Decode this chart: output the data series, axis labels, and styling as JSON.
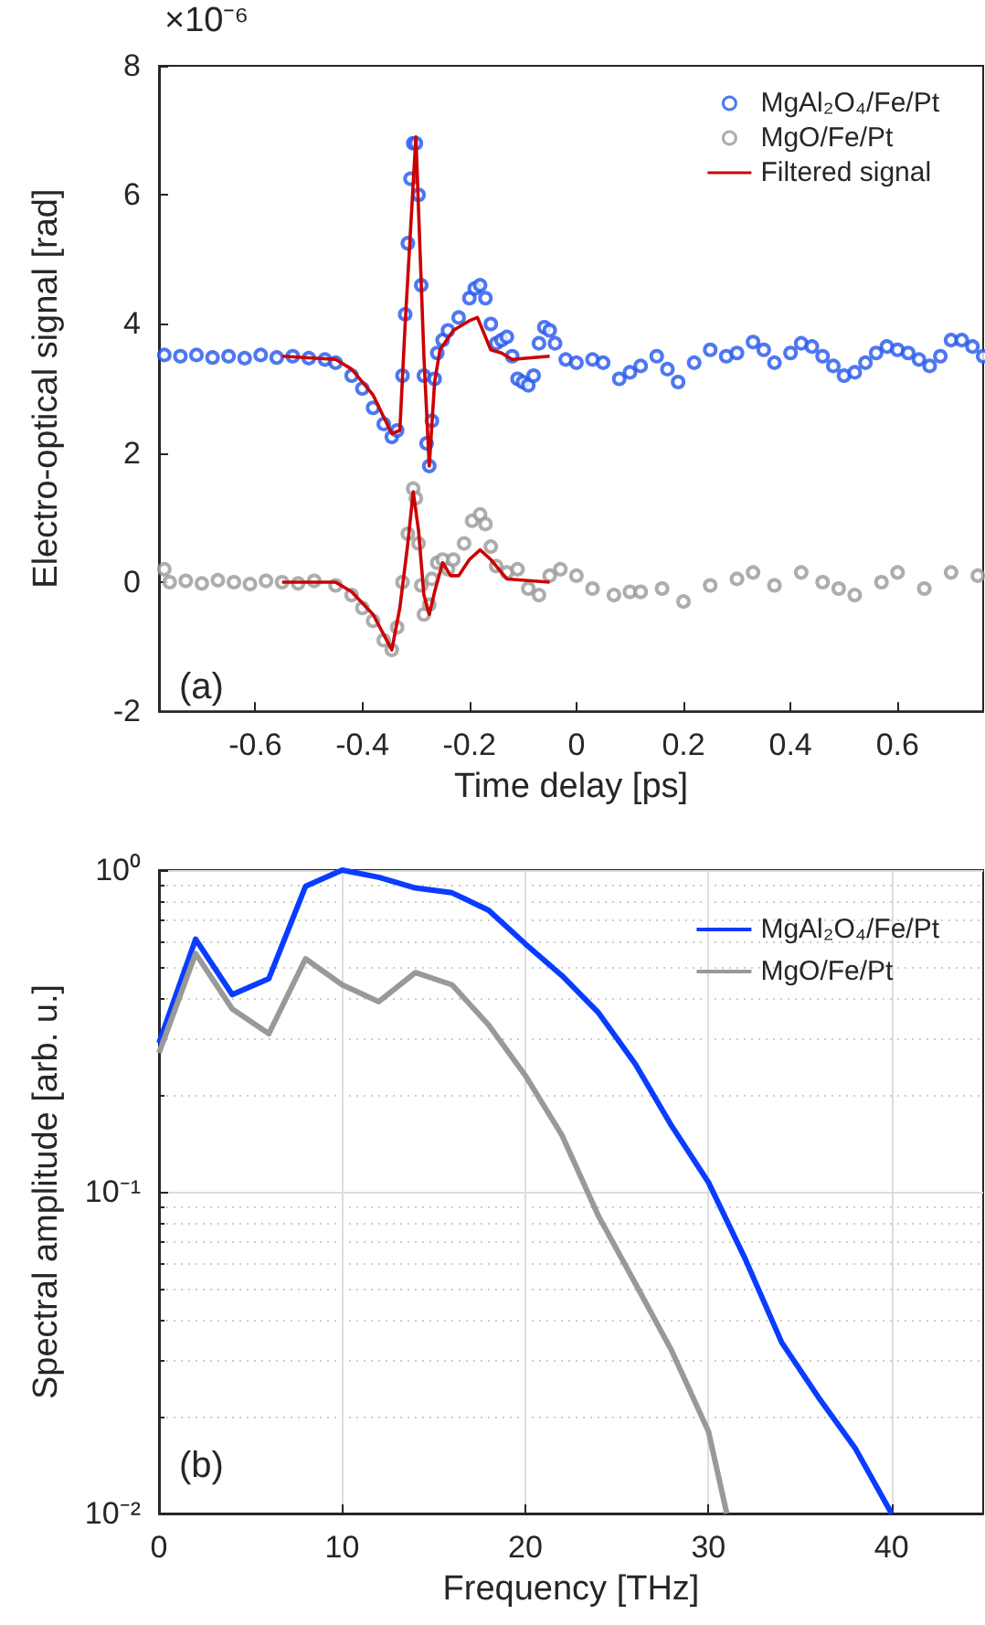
{
  "chart_data": [
    {
      "type": "scatter",
      "xlabel": "Time delay [ps]",
      "ylabel": "Electro-optical signal [rad]",
      "annotations": [
        "×10⁻⁶",
        "(a)"
      ],
      "xlim": [
        -0.78,
        0.76
      ],
      "xticks": [
        -0.6,
        -0.4,
        -0.2,
        0,
        0.2,
        0.4,
        0.6
      ],
      "ylim": [
        -2,
        8
      ],
      "yticks": [
        -2,
        0,
        2,
        4,
        6,
        8
      ],
      "legend": "top right",
      "series": [
        {
          "name": "MgAl₂O₄/Fe/Pt",
          "marker": "circle",
          "color": "#2255ee",
          "x": [
            -0.77,
            -0.74,
            -0.71,
            -0.68,
            -0.65,
            -0.62,
            -0.59,
            -0.56,
            -0.53,
            -0.5,
            -0.47,
            -0.45,
            -0.42,
            -0.4,
            -0.38,
            -0.36,
            -0.345,
            -0.335,
            -0.325,
            -0.32,
            -0.315,
            -0.31,
            -0.305,
            -0.3,
            -0.295,
            -0.29,
            -0.285,
            -0.28,
            -0.275,
            -0.27,
            -0.265,
            -0.26,
            -0.25,
            -0.24,
            -0.22,
            -0.2,
            -0.19,
            -0.18,
            -0.17,
            -0.16,
            -0.15,
            -0.14,
            -0.13,
            -0.12,
            -0.11,
            -0.1,
            -0.09,
            -0.08,
            -0.07,
            -0.06,
            -0.05,
            -0.04,
            -0.02,
            0,
            0.03,
            0.05,
            0.08,
            0.1,
            0.12,
            0.15,
            0.17,
            0.19,
            0.22,
            0.25,
            0.28,
            0.3,
            0.33,
            0.35,
            0.37,
            0.4,
            0.42,
            0.44,
            0.46,
            0.48,
            0.5,
            0.52,
            0.54,
            0.56,
            0.58,
            0.6,
            0.62,
            0.64,
            0.66,
            0.68,
            0.7,
            0.72,
            0.74,
            0.76
          ],
          "values": [
            3.52,
            3.5,
            3.52,
            3.48,
            3.5,
            3.47,
            3.52,
            3.48,
            3.5,
            3.47,
            3.45,
            3.4,
            3.2,
            3.0,
            2.7,
            2.45,
            2.25,
            2.35,
            3.2,
            4.15,
            5.25,
            6.25,
            6.8,
            6.8,
            6.0,
            4.6,
            3.2,
            2.15,
            1.8,
            2.5,
            3.15,
            3.55,
            3.75,
            3.9,
            4.1,
            4.4,
            4.55,
            4.6,
            4.4,
            4.0,
            3.7,
            3.75,
            3.8,
            3.5,
            3.15,
            3.1,
            3.05,
            3.2,
            3.7,
            3.95,
            3.9,
            3.7,
            3.45,
            3.4,
            3.45,
            3.4,
            3.15,
            3.25,
            3.35,
            3.5,
            3.3,
            3.1,
            3.4,
            3.6,
            3.5,
            3.55,
            3.72,
            3.6,
            3.4,
            3.55,
            3.7,
            3.65,
            3.5,
            3.35,
            3.2,
            3.25,
            3.4,
            3.55,
            3.65,
            3.6,
            3.55,
            3.45,
            3.35,
            3.5,
            3.75,
            3.75,
            3.65,
            3.5
          ]
        },
        {
          "name": "MgO/Fe/Pt",
          "marker": "circle",
          "color": "#999999",
          "x": [
            -0.77,
            -0.76,
            -0.73,
            -0.7,
            -0.67,
            -0.64,
            -0.61,
            -0.58,
            -0.55,
            -0.52,
            -0.49,
            -0.45,
            -0.42,
            -0.4,
            -0.38,
            -0.36,
            -0.345,
            -0.335,
            -0.325,
            -0.315,
            -0.305,
            -0.3,
            -0.295,
            -0.29,
            -0.285,
            -0.275,
            -0.27,
            -0.26,
            -0.25,
            -0.24,
            -0.23,
            -0.21,
            -0.195,
            -0.18,
            -0.17,
            -0.16,
            -0.15,
            -0.13,
            -0.11,
            -0.09,
            -0.07,
            -0.05,
            -0.03,
            0,
            0.03,
            0.07,
            0.1,
            0.12,
            0.16,
            0.2,
            0.25,
            0.3,
            0.33,
            0.37,
            0.42,
            0.46,
            0.49,
            0.52,
            0.57,
            0.6,
            0.65,
            0.7,
            0.75
          ],
          "values": [
            0.2,
            0,
            0.02,
            -0.02,
            0.03,
            0,
            -0.03,
            0.02,
            0,
            -0.02,
            0.02,
            -0.05,
            -0.2,
            -0.4,
            -0.6,
            -0.9,
            -1.05,
            -0.7,
            0,
            0.75,
            1.45,
            1.3,
            0.6,
            -0.05,
            -0.5,
            -0.35,
            0.05,
            0.3,
            0.35,
            0.2,
            0.35,
            0.6,
            0.95,
            1.05,
            0.9,
            0.55,
            0.25,
            0.15,
            0.2,
            -0.1,
            -0.2,
            0.1,
            0.2,
            0.1,
            -0.1,
            -0.2,
            -0.15,
            -0.15,
            -0.1,
            -0.3,
            -0.05,
            0.05,
            0.15,
            -0.05,
            0.15,
            0,
            -0.1,
            -0.2,
            0,
            0.15,
            -0.1,
            0.15,
            0.1
          ]
        },
        {
          "name": "Filtered signal",
          "type": "line",
          "color": "#cc0000",
          "x": [
            -0.55,
            -0.45,
            -0.42,
            -0.38,
            -0.345,
            -0.33,
            -0.32,
            -0.3,
            -0.285,
            -0.275,
            -0.265,
            -0.255,
            -0.23,
            -0.2,
            -0.185,
            -0.16,
            -0.14,
            -0.12,
            -0.05
          ],
          "values": [
            3.5,
            3.45,
            3.3,
            2.9,
            2.3,
            2.35,
            4.0,
            6.9,
            3.5,
            1.8,
            3.1,
            3.6,
            3.9,
            4.05,
            4.1,
            3.6,
            3.55,
            3.45,
            3.5
          ]
        },
        {
          "type": "line",
          "color": "#cc0000",
          "x": [
            -0.55,
            -0.45,
            -0.42,
            -0.38,
            -0.345,
            -0.33,
            -0.315,
            -0.305,
            -0.295,
            -0.285,
            -0.275,
            -0.265,
            -0.25,
            -0.235,
            -0.22,
            -0.2,
            -0.18,
            -0.16,
            -0.13,
            -0.05
          ],
          "values": [
            0,
            0,
            -0.15,
            -0.5,
            -1.05,
            -0.4,
            0.6,
            1.4,
            0.8,
            -0.2,
            -0.5,
            -0.15,
            0.3,
            0.1,
            0.1,
            0.35,
            0.5,
            0.35,
            0.05,
            0
          ]
        }
      ]
    },
    {
      "type": "line",
      "xlabel": "Frequency [THz]",
      "ylabel": "Spectral amplitude [arb. u.]",
      "annotations": [
        "(b)"
      ],
      "xlim": [
        0,
        45
      ],
      "xticks": [
        0,
        10,
        20,
        30,
        40
      ],
      "ylim": [
        0.01,
        1
      ],
      "yticks": [
        {
          "value": 0.01,
          "label": "10⁻²"
        },
        {
          "value": 0.1,
          "label": "10⁻¹"
        },
        {
          "value": 1,
          "label": "10⁰"
        }
      ],
      "log": "y",
      "grid": true,
      "legend": "top right",
      "series": [
        {
          "name": "MgAl₂O₄/Fe/Pt",
          "color": "#0a3cff",
          "x": [
            0,
            2,
            4,
            6,
            8,
            10,
            12,
            14,
            16,
            18,
            20,
            22,
            24,
            26,
            28,
            30,
            32,
            34,
            36,
            38,
            40
          ],
          "values": [
            0.29,
            0.61,
            0.41,
            0.46,
            0.89,
            1.0,
            0.95,
            0.88,
            0.85,
            0.75,
            0.59,
            0.47,
            0.36,
            0.25,
            0.16,
            0.107,
            0.062,
            0.034,
            0.023,
            0.016,
            0.01
          ]
        },
        {
          "name": "MgO/Fe/Pt",
          "color": "#999999",
          "x": [
            0,
            2,
            4,
            6,
            8,
            10,
            12,
            14,
            16,
            18,
            20,
            22,
            24,
            26,
            28,
            30,
            31
          ],
          "values": [
            0.27,
            0.55,
            0.37,
            0.31,
            0.53,
            0.44,
            0.39,
            0.48,
            0.44,
            0.33,
            0.23,
            0.15,
            0.084,
            0.052,
            0.032,
            0.018,
            0.01
          ]
        }
      ]
    }
  ]
}
